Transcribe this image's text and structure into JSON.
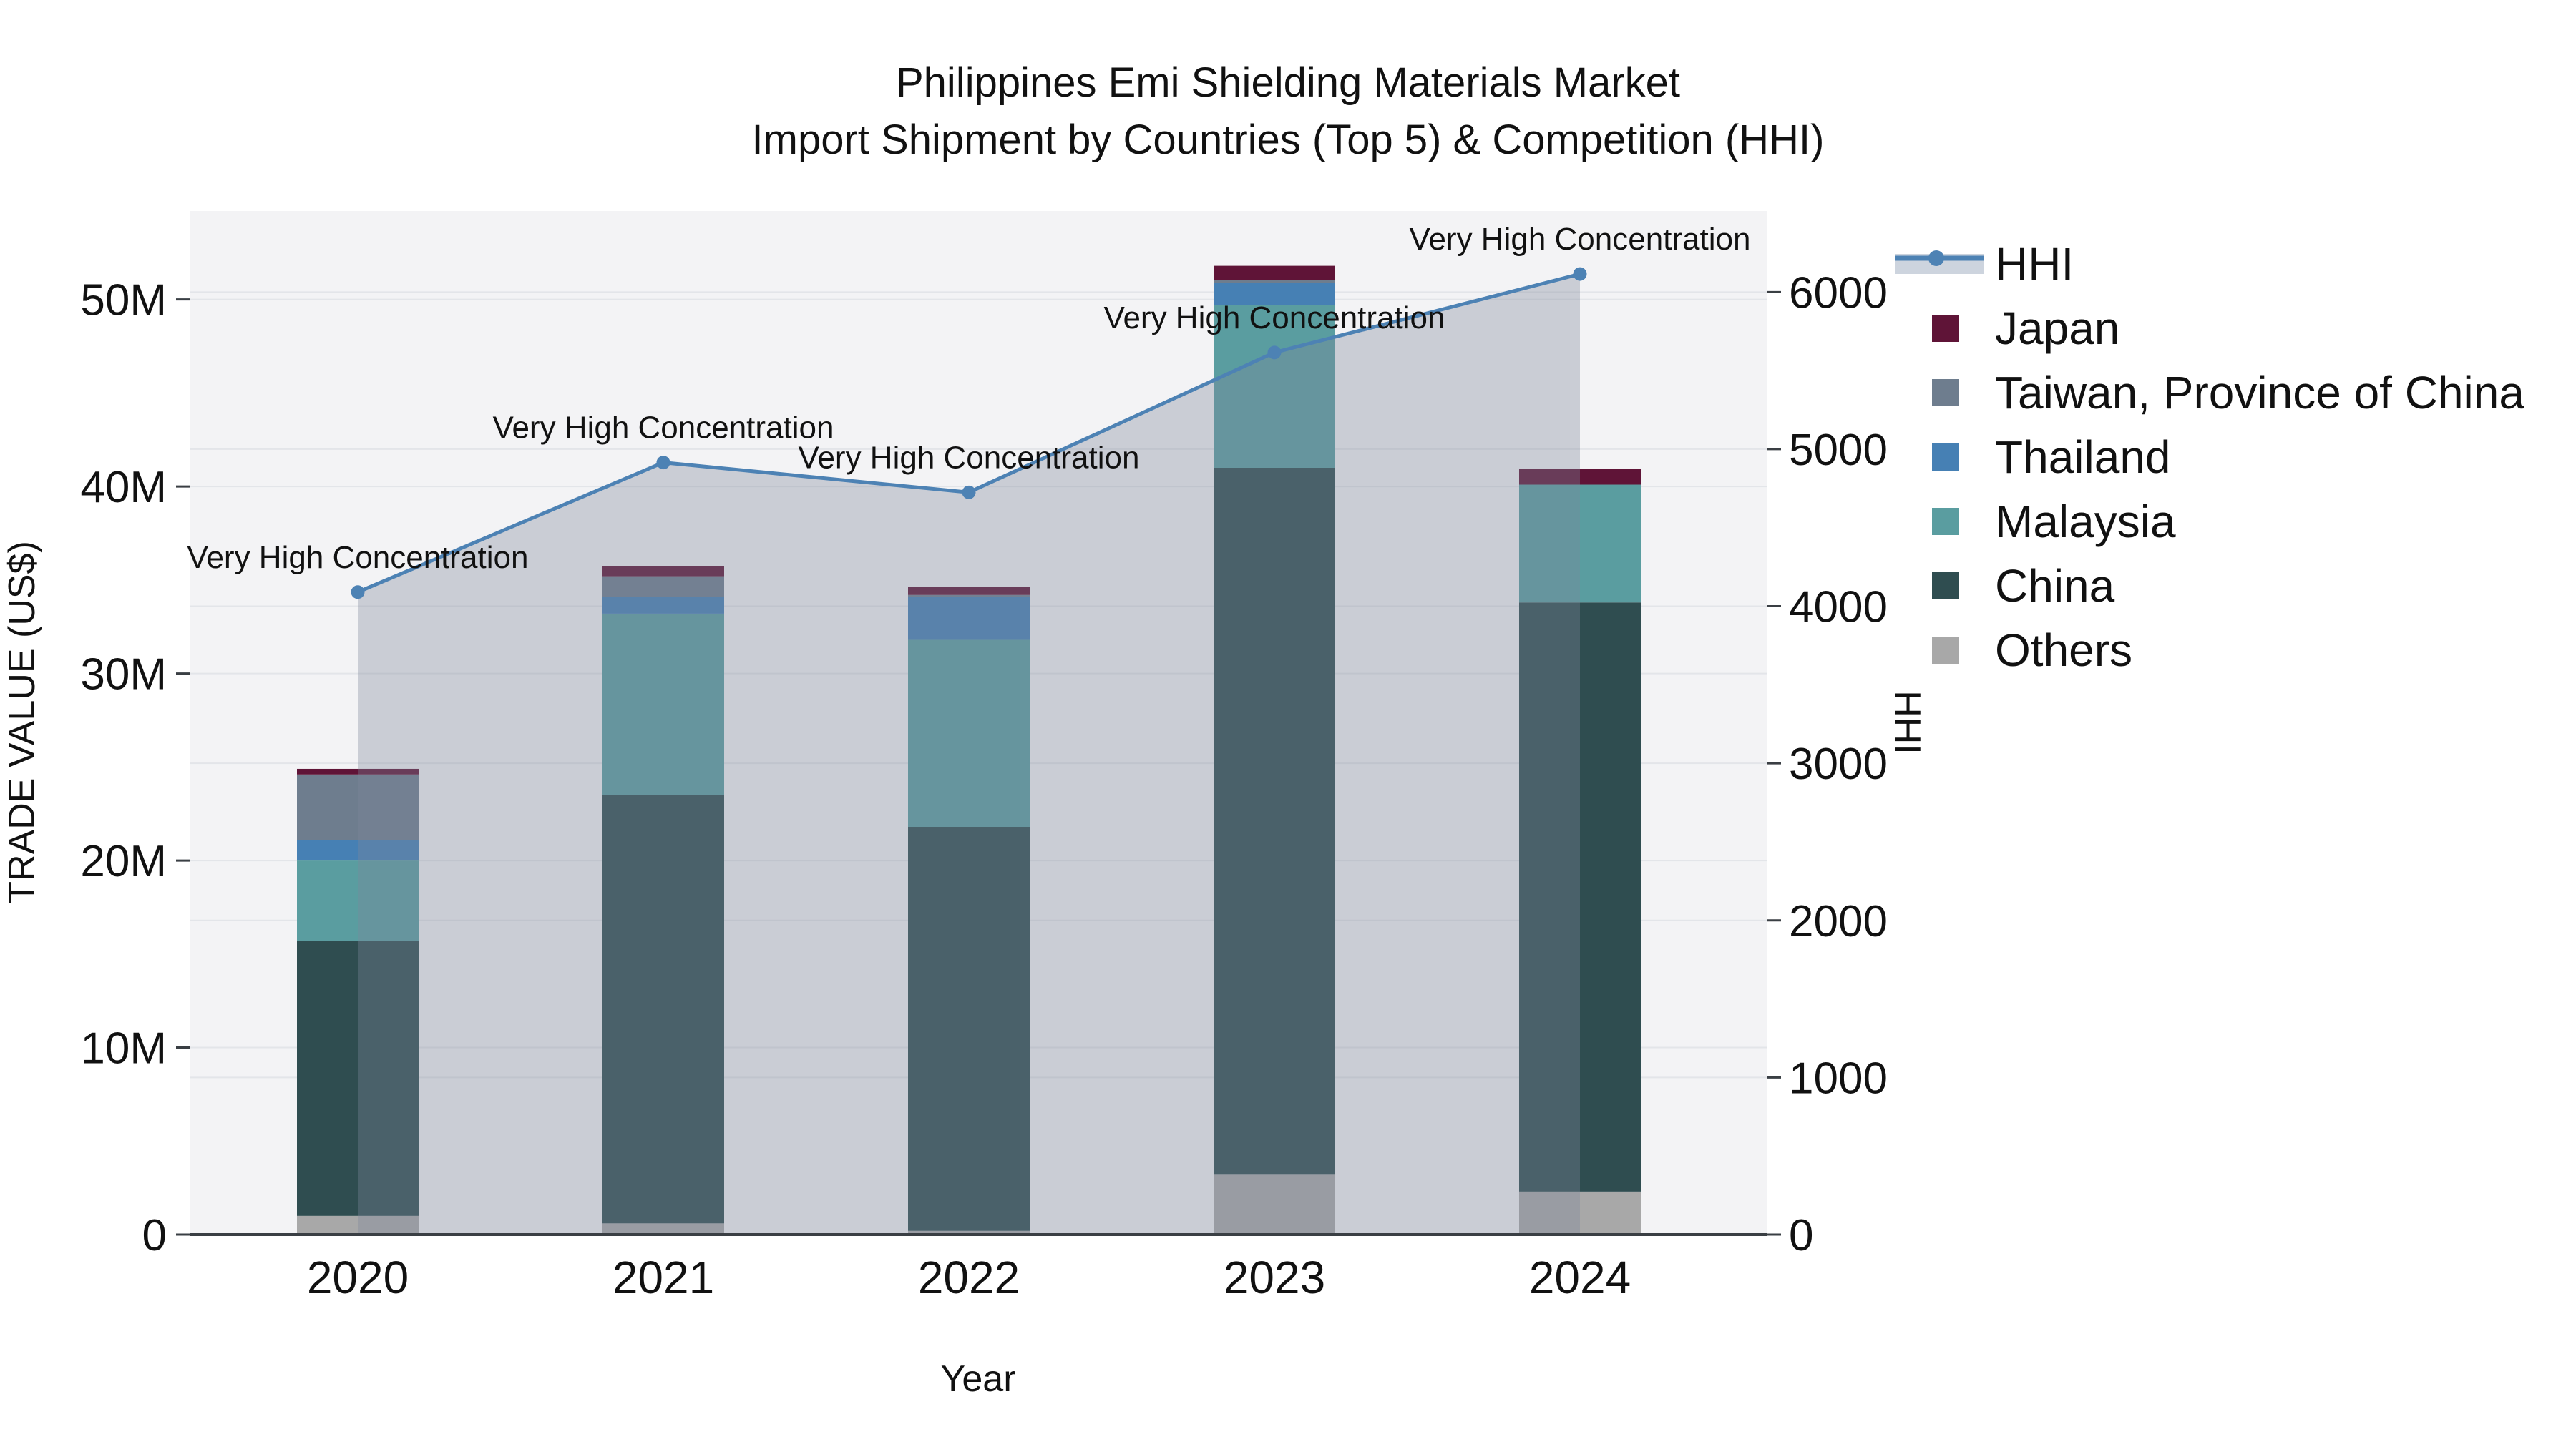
{
  "title": {
    "line1": "Philippines Emi Shielding Materials Market",
    "line2": "Import Shipment by Countries (Top 5) & Competition (HHI)"
  },
  "chart_data": {
    "type": "bar+line",
    "categories": [
      "2020",
      "2021",
      "2022",
      "2023",
      "2024"
    ],
    "x_label": "Year",
    "y_left": {
      "label": "TRADE VALUE (US$)",
      "unit": "million US$",
      "ticks": [
        0,
        10,
        20,
        30,
        40,
        50
      ],
      "tick_labels": [
        "0",
        "10M",
        "20M",
        "30M",
        "40M",
        "50M"
      ],
      "max": 54.73
    },
    "y_right": {
      "label": "HHI",
      "ticks": [
        0,
        1000,
        2000,
        3000,
        4000,
        5000,
        6000
      ],
      "tick_labels": [
        "0",
        "1000",
        "2000",
        "3000",
        "4000",
        "5000",
        "6000"
      ],
      "max": 6516
    },
    "bar_series_bottom_to_top": [
      {
        "name": "Others",
        "color": "#a8a8a8",
        "values_musd": [
          1.0,
          0.6,
          0.2,
          3.2,
          2.3
        ]
      },
      {
        "name": "China",
        "color": "#2f4d50",
        "values_musd": [
          14.7,
          22.9,
          21.6,
          37.8,
          31.5
        ]
      },
      {
        "name": "Malaysia",
        "color": "#5a9da0",
        "values_musd": [
          4.3,
          9.7,
          10.0,
          8.7,
          6.3
        ]
      },
      {
        "name": "Thailand",
        "color": "#4680b4",
        "values_musd": [
          1.1,
          0.9,
          2.3,
          1.2,
          0
        ]
      },
      {
        "name": "Taiwan, Province of China",
        "color": "#6e7d8e",
        "values_musd": [
          3.5,
          1.1,
          0.1,
          0.15,
          0
        ]
      },
      {
        "name": "Japan",
        "color": "#5f1437",
        "values_musd": [
          0.3,
          0.55,
          0.45,
          0.75,
          0.85
        ]
      }
    ],
    "line_series": {
      "name": "HHI",
      "color": "#4d82b4",
      "area_fill": "rgba(125,135,155,0.35)",
      "values": [
        4090,
        4915,
        4725,
        5615,
        6115
      ]
    },
    "annotations": [
      {
        "x": "2020",
        "text": "Very High Concentration"
      },
      {
        "x": "2021",
        "text": "Very High Concentration"
      },
      {
        "x": "2022",
        "text": "Very High Concentration"
      },
      {
        "x": "2023",
        "text": "Very High Concentration"
      },
      {
        "x": "2024",
        "text": "Very High Concentration"
      }
    ],
    "legend_order": [
      "HHI",
      "Japan",
      "Taiwan, Province of China",
      "Thailand",
      "Malaysia",
      "China",
      "Others"
    ],
    "legend_swatch_colors": {
      "HHI_band": "#cdd4de",
      "HHI_line": "#4d82b4",
      "Japan": "#5f1437",
      "Taiwan, Province of China": "#6e7d8e",
      "Thailand": "#4680b4",
      "Malaysia": "#5a9da0",
      "China": "#2f4d50",
      "Others": "#a8a8a8"
    },
    "style": {
      "plot_bg": "#f3f3f5",
      "grid_color": "#e3e5e9",
      "axis_line_color": "#3a3f44",
      "text_color": "#111111"
    }
  }
}
